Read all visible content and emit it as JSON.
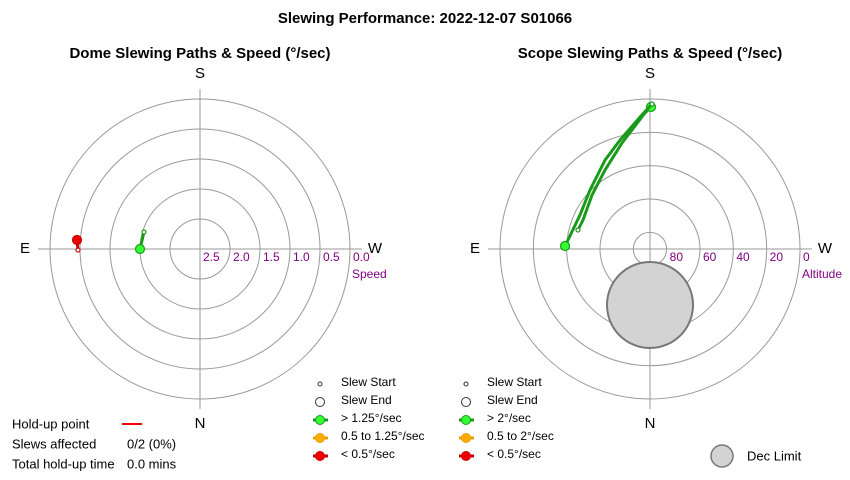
{
  "title": "Slewing Performance: 2022-12-07 S01066",
  "chart_data": [
    {
      "type": "polar",
      "title": "Dome Slewing Paths & Speed (°/sec)",
      "directions": {
        "S": "S",
        "E": "E",
        "W": "W",
        "N": "N"
      },
      "rlabel": "Speed",
      "rlim": [
        2.5,
        0
      ],
      "rticks": [
        2.5,
        {
          "value": 2,
          "label": "2.0"
        },
        1.5,
        {
          "value": 1,
          "label": "1.0"
        },
        0.5,
        {
          "value": 0,
          "label": "0.0"
        }
      ],
      "markers": [
        "Slew Start",
        "Slew End"
      ],
      "speed_classes": [
        {
          "label": "> 1.25°/sec",
          "color": "#1a9a1a",
          "fill": "#33ff33"
        },
        {
          "label": "0.5 to 1.25°/sec",
          "color": "#e8a000",
          "fill": "#ffaa00"
        },
        {
          "label": "< 0.5°/sec",
          "color": "#cc0000",
          "fill": "#ee0000"
        }
      ],
      "series": [
        {
          "color": "#1a9a1a",
          "fill": "#33ff33",
          "az": [
            106.9,
            90
          ],
          "r": [
            1.525,
            1.5
          ]
        },
        {
          "color": "#cc0000",
          "fill": "#ee0000",
          "az": [
            89.5,
            94.2
          ],
          "r": [
            0.467,
            0.445
          ]
        }
      ]
    },
    {
      "type": "polar",
      "title": "Scope Slewing Paths & Speed (°/sec)",
      "directions": {
        "S": "S",
        "E": "E",
        "W": "W",
        "N": "N"
      },
      "rlabel": "Altitude",
      "rlim": [
        90,
        0
      ],
      "rticks": [
        80,
        60,
        40,
        20,
        0
      ],
      "markers": [
        "Slew Start",
        "Slew End"
      ],
      "speed_classes": [
        {
          "label": "> 2°/sec",
          "color": "#1a9a1a",
          "fill": "#33ff33"
        },
        {
          "label": "0.5 to 2°/sec",
          "color": "#e8a000",
          "fill": "#ffaa00"
        },
        {
          "label": "< 0.5°/sec",
          "color": "#cc0000",
          "fill": "#ee0000"
        }
      ],
      "series": [
        {
          "color": "#1a9a1a",
          "fill": "#33ff33",
          "az": [
            104.8,
            113.4,
            132.9,
            150.3,
            165.2,
            177.9,
            180.4
          ],
          "r": [
            45.3,
            46.2,
            42.5,
            35.5,
            24.2,
            8.3,
            4.8
          ]
        },
        {
          "color": "#1a9a1a",
          "fill": "#33ff33",
          "az": [
            180.8,
            175.7,
            164.6,
            153.2,
            134.5,
            115.9,
            92.0
          ],
          "r": [
            3.0,
            10.6,
            22.2,
            30.2,
            39.5,
            43.3,
            39.0
          ]
        }
      ],
      "dec_limit": {
        "label": "Dec Limit",
        "az": 0,
        "alt": 56.4,
        "radius": 25.8,
        "color": "#d3d3d3"
      }
    }
  ],
  "holdup": {
    "label": "Hold-up point",
    "color": "#ff0000",
    "slews_label": "Slews affected",
    "slews_value": "0/2 (0%)",
    "time_label": "Total hold-up time",
    "time_value": "0.0 mins"
  }
}
